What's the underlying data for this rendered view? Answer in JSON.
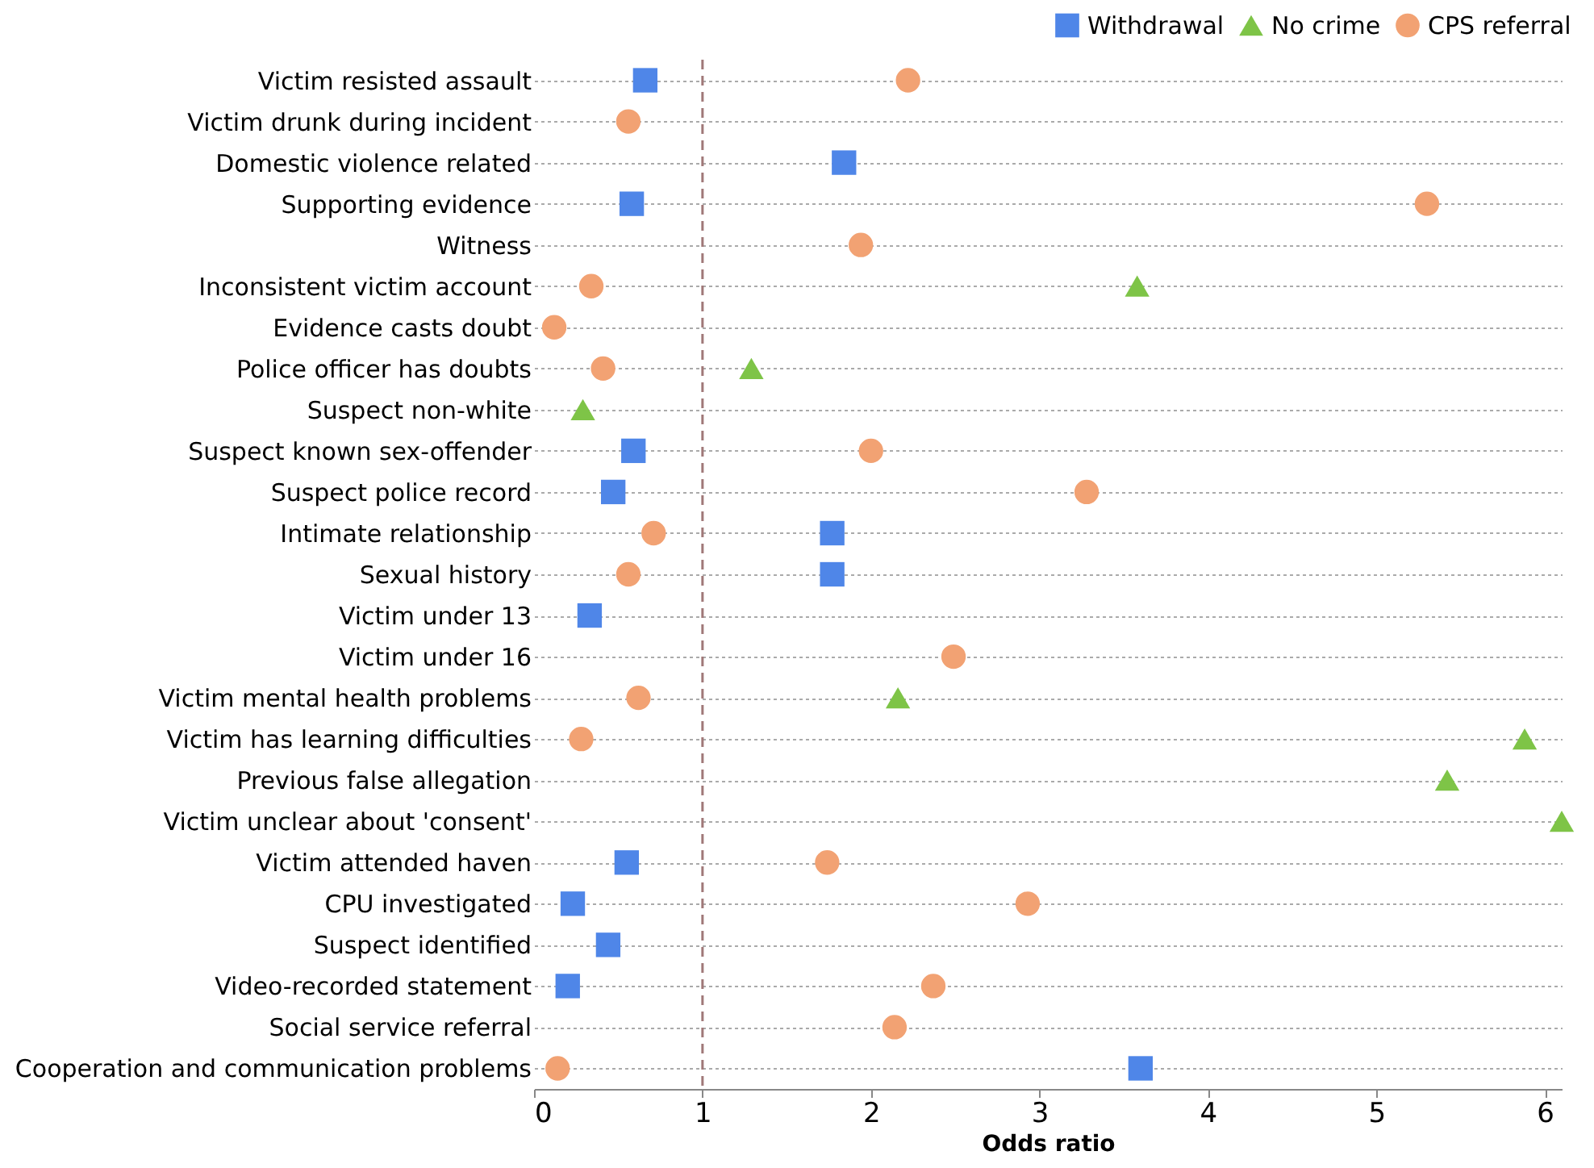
{
  "chart_data": {
    "type": "scatter",
    "xlabel": "Odds ratio",
    "categories": [
      "Victim resisted assault",
      "Victim drunk during incident",
      "Domestic violence related",
      "Supporting evidence",
      "Witness",
      "Inconsistent victim account",
      "Evidence casts doubt",
      "Police officer has doubts",
      "Suspect non-white",
      "Suspect known sex-offender",
      "Suspect police record",
      "Intimate relationship",
      "Sexual history",
      "Victim under 13",
      "Victim under 16",
      "Victim mental health problems",
      "Victim has learning difficulties",
      "Previous false allegation",
      "Victim unclear about 'consent'",
      "Victim attended haven",
      "CPU investigated",
      "Suspect identified",
      "Video-recorded statement",
      "Social service referral",
      "Cooperation and communication problems"
    ],
    "series": [
      {
        "name": "Withdrawal",
        "color": "#4f86e8",
        "marker": "square",
        "values": [
          0.66,
          null,
          1.84,
          0.58,
          null,
          null,
          null,
          null,
          null,
          0.59,
          0.47,
          1.77,
          1.77,
          0.33,
          null,
          null,
          null,
          null,
          null,
          0.55,
          0.23,
          0.44,
          0.2,
          null,
          3.6
        ]
      },
      {
        "name": "No crime",
        "color": "#7ec447",
        "marker": "triangle",
        "values": [
          null,
          null,
          null,
          null,
          null,
          3.58,
          null,
          1.29,
          0.29,
          null,
          null,
          null,
          null,
          null,
          null,
          2.16,
          5.88,
          5.42,
          6.1,
          null,
          null,
          null,
          null,
          null,
          null
        ]
      },
      {
        "name": "CPS referral",
        "color": "#f2a273",
        "marker": "circle",
        "values": [
          2.22,
          0.56,
          null,
          5.3,
          1.94,
          0.34,
          0.12,
          0.41,
          null,
          2.0,
          3.28,
          0.71,
          0.56,
          null,
          2.49,
          0.62,
          0.28,
          null,
          null,
          1.74,
          2.93,
          null,
          2.37,
          2.14,
          0.14
        ]
      }
    ],
    "xlim": [
      0,
      6.1
    ],
    "xticks": [
      0,
      1,
      2,
      3,
      4,
      5,
      6
    ],
    "ref_lines": [
      {
        "axis": "x",
        "value": 1,
        "color": "#a07878",
        "line_style": "dashed"
      }
    ],
    "grid": "y",
    "legend": "top right",
    "orientation": "horizontal"
  }
}
